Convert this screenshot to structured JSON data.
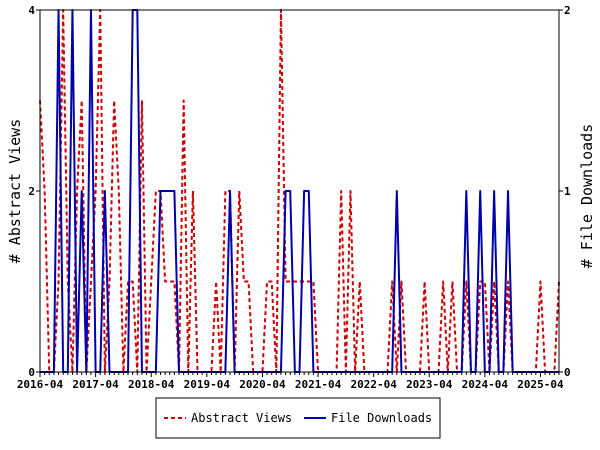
{
  "chart_data": {
    "type": "line",
    "title": "",
    "xlabel": "",
    "ylabel": "# Abstract Views",
    "y2label": "# File Downloads",
    "ylim": [
      0,
      4
    ],
    "y2lim": [
      0,
      2
    ],
    "y_ticks": [
      "0",
      "2",
      "4"
    ],
    "y2_ticks": [
      "0",
      "1",
      "2"
    ],
    "x_ticks": [
      "2016-04",
      "2017-04",
      "2018-04",
      "2019-04",
      "2020-04",
      "2021-04",
      "2022-04",
      "2023-04",
      "2024-04",
      "2025-04"
    ],
    "x_range_months": [
      "2016-04",
      "2025-08"
    ],
    "legend_position": "bottom",
    "grid": false,
    "series": [
      {
        "name": "Abstract Views",
        "axis": "left",
        "color": "#cc0000",
        "style": "dashed",
        "points": [
          [
            "2016-04",
            3
          ],
          [
            "2016-05",
            2
          ],
          [
            "2016-06",
            0
          ],
          [
            "2016-07",
            0
          ],
          [
            "2016-08",
            1
          ],
          [
            "2016-09",
            4
          ],
          [
            "2016-10",
            1
          ],
          [
            "2016-11",
            0
          ],
          [
            "2016-12",
            2
          ],
          [
            "2017-01",
            3
          ],
          [
            "2017-02",
            0
          ],
          [
            "2017-03",
            1
          ],
          [
            "2017-04",
            2
          ],
          [
            "2017-05",
            4
          ],
          [
            "2017-06",
            0
          ],
          [
            "2017-07",
            1
          ],
          [
            "2017-08",
            3
          ],
          [
            "2017-09",
            2
          ],
          [
            "2017-10",
            0
          ],
          [
            "2017-11",
            1
          ],
          [
            "2017-12",
            1
          ],
          [
            "2018-01",
            0
          ],
          [
            "2018-02",
            3
          ],
          [
            "2018-03",
            0
          ],
          [
            "2018-04",
            1
          ],
          [
            "2018-05",
            2
          ],
          [
            "2018-06",
            2
          ],
          [
            "2018-07",
            1
          ],
          [
            "2018-08",
            1
          ],
          [
            "2018-09",
            1
          ],
          [
            "2018-10",
            0
          ],
          [
            "2018-11",
            3
          ],
          [
            "2018-12",
            0
          ],
          [
            "2019-01",
            2
          ],
          [
            "2019-02",
            0
          ],
          [
            "2019-03",
            0
          ],
          [
            "2019-04",
            0
          ],
          [
            "2019-05",
            0
          ],
          [
            "2019-06",
            1
          ],
          [
            "2019-07",
            0
          ],
          [
            "2019-08",
            2
          ],
          [
            "2019-09",
            2
          ],
          [
            "2019-10",
            0
          ],
          [
            "2019-11",
            2
          ],
          [
            "2019-12",
            1
          ],
          [
            "2020-01",
            1
          ],
          [
            "2020-02",
            0
          ],
          [
            "2020-03",
            0
          ],
          [
            "2020-04",
            0
          ],
          [
            "2020-05",
            1
          ],
          [
            "2020-06",
            1
          ],
          [
            "2020-07",
            0
          ],
          [
            "2020-08",
            4
          ],
          [
            "2020-09",
            1
          ],
          [
            "2020-10",
            1
          ],
          [
            "2020-11",
            1
          ],
          [
            "2020-12",
            1
          ],
          [
            "2021-01",
            1
          ],
          [
            "2021-02",
            1
          ],
          [
            "2021-03",
            1
          ],
          [
            "2021-04",
            0
          ],
          [
            "2021-05",
            0
          ],
          [
            "2021-06",
            0
          ],
          [
            "2021-07",
            0
          ],
          [
            "2021-08",
            0
          ],
          [
            "2021-09",
            2
          ],
          [
            "2021-10",
            0
          ],
          [
            "2021-11",
            2
          ],
          [
            "2021-12",
            0
          ],
          [
            "2022-01",
            1
          ],
          [
            "2022-02",
            0
          ],
          [
            "2022-03",
            0
          ],
          [
            "2022-04",
            0
          ],
          [
            "2022-05",
            0
          ],
          [
            "2022-06",
            0
          ],
          [
            "2022-07",
            0
          ],
          [
            "2022-08",
            1
          ],
          [
            "2022-09",
            0
          ],
          [
            "2022-10",
            1
          ],
          [
            "2022-11",
            0
          ],
          [
            "2022-12",
            0
          ],
          [
            "2023-01",
            0
          ],
          [
            "2023-02",
            0
          ],
          [
            "2023-03",
            1
          ],
          [
            "2023-04",
            0
          ],
          [
            "2023-05",
            0
          ],
          [
            "2023-06",
            0
          ],
          [
            "2023-07",
            1
          ],
          [
            "2023-08",
            0
          ],
          [
            "2023-09",
            1
          ],
          [
            "2023-10",
            0
          ],
          [
            "2023-11",
            0
          ],
          [
            "2023-12",
            1
          ],
          [
            "2024-01",
            0
          ],
          [
            "2024-02",
            0
          ],
          [
            "2024-03",
            1
          ],
          [
            "2024-04",
            1
          ],
          [
            "2024-05",
            0
          ],
          [
            "2024-06",
            1
          ],
          [
            "2024-07",
            0
          ],
          [
            "2024-08",
            0
          ],
          [
            "2024-09",
            1
          ],
          [
            "2024-10",
            0
          ],
          [
            "2024-11",
            0
          ],
          [
            "2024-12",
            0
          ],
          [
            "2025-01",
            0
          ],
          [
            "2025-02",
            0
          ],
          [
            "2025-03",
            0
          ],
          [
            "2025-04",
            1
          ],
          [
            "2025-05",
            0
          ],
          [
            "2025-06",
            0
          ],
          [
            "2025-07",
            0
          ],
          [
            "2025-08",
            1
          ]
        ]
      },
      {
        "name": "File Downloads",
        "axis": "right",
        "color": "#0000aa",
        "style": "solid",
        "points": [
          [
            "2016-04",
            0
          ],
          [
            "2016-05",
            0
          ],
          [
            "2016-06",
            0
          ],
          [
            "2016-07",
            0
          ],
          [
            "2016-08",
            2
          ],
          [
            "2016-09",
            0
          ],
          [
            "2016-10",
            0
          ],
          [
            "2016-11",
            2
          ],
          [
            "2016-12",
            0
          ],
          [
            "2017-01",
            1
          ],
          [
            "2017-02",
            0
          ],
          [
            "2017-03",
            2
          ],
          [
            "2017-04",
            0
          ],
          [
            "2017-05",
            0
          ],
          [
            "2017-06",
            1
          ],
          [
            "2017-07",
            0
          ],
          [
            "2017-08",
            0
          ],
          [
            "2017-09",
            0
          ],
          [
            "2017-10",
            0
          ],
          [
            "2017-11",
            0
          ],
          [
            "2017-12",
            2
          ],
          [
            "2018-01",
            2
          ],
          [
            "2018-02",
            0
          ],
          [
            "2018-03",
            0
          ],
          [
            "2018-04",
            0
          ],
          [
            "2018-05",
            0
          ],
          [
            "2018-06",
            1
          ],
          [
            "2018-07",
            1
          ],
          [
            "2018-08",
            1
          ],
          [
            "2018-09",
            1
          ],
          [
            "2018-10",
            0
          ],
          [
            "2018-11",
            0
          ],
          [
            "2018-12",
            0
          ],
          [
            "2019-01",
            0
          ],
          [
            "2019-02",
            0
          ],
          [
            "2019-03",
            0
          ],
          [
            "2019-04",
            0
          ],
          [
            "2019-05",
            0
          ],
          [
            "2019-06",
            0
          ],
          [
            "2019-07",
            0
          ],
          [
            "2019-08",
            0
          ],
          [
            "2019-09",
            1
          ],
          [
            "2019-10",
            0
          ],
          [
            "2019-11",
            0
          ],
          [
            "2019-12",
            0
          ],
          [
            "2020-01",
            0
          ],
          [
            "2020-02",
            0
          ],
          [
            "2020-03",
            0
          ],
          [
            "2020-04",
            0
          ],
          [
            "2020-05",
            0
          ],
          [
            "2020-06",
            0
          ],
          [
            "2020-07",
            0
          ],
          [
            "2020-08",
            0
          ],
          [
            "2020-09",
            1
          ],
          [
            "2020-10",
            1
          ],
          [
            "2020-11",
            0
          ],
          [
            "2020-12",
            0
          ],
          [
            "2021-01",
            1
          ],
          [
            "2021-02",
            1
          ],
          [
            "2021-03",
            0
          ],
          [
            "2021-04",
            0
          ],
          [
            "2021-05",
            0
          ],
          [
            "2021-06",
            0
          ],
          [
            "2021-07",
            0
          ],
          [
            "2021-08",
            0
          ],
          [
            "2021-09",
            0
          ],
          [
            "2021-10",
            0
          ],
          [
            "2021-11",
            0
          ],
          [
            "2021-12",
            0
          ],
          [
            "2022-01",
            0
          ],
          [
            "2022-02",
            0
          ],
          [
            "2022-03",
            0
          ],
          [
            "2022-04",
            0
          ],
          [
            "2022-05",
            0
          ],
          [
            "2022-06",
            0
          ],
          [
            "2022-07",
            0
          ],
          [
            "2022-08",
            0
          ],
          [
            "2022-09",
            1
          ],
          [
            "2022-10",
            0
          ],
          [
            "2022-11",
            0
          ],
          [
            "2022-12",
            0
          ],
          [
            "2023-01",
            0
          ],
          [
            "2023-02",
            0
          ],
          [
            "2023-03",
            0
          ],
          [
            "2023-04",
            0
          ],
          [
            "2023-05",
            0
          ],
          [
            "2023-06",
            0
          ],
          [
            "2023-07",
            0
          ],
          [
            "2023-08",
            0
          ],
          [
            "2023-09",
            0
          ],
          [
            "2023-10",
            0
          ],
          [
            "2023-11",
            0
          ],
          [
            "2023-12",
            1
          ],
          [
            "2024-01",
            0
          ],
          [
            "2024-02",
            0
          ],
          [
            "2024-03",
            1
          ],
          [
            "2024-04",
            0
          ],
          [
            "2024-05",
            0
          ],
          [
            "2024-06",
            1
          ],
          [
            "2024-07",
            0
          ],
          [
            "2024-08",
            0
          ],
          [
            "2024-09",
            1
          ],
          [
            "2024-10",
            0
          ],
          [
            "2024-11",
            0
          ],
          [
            "2024-12",
            0
          ],
          [
            "2025-01",
            0
          ],
          [
            "2025-02",
            0
          ],
          [
            "2025-03",
            0
          ],
          [
            "2025-04",
            0
          ],
          [
            "2025-05",
            0
          ],
          [
            "2025-06",
            0
          ],
          [
            "2025-07",
            0
          ],
          [
            "2025-08",
            0
          ]
        ]
      }
    ]
  }
}
